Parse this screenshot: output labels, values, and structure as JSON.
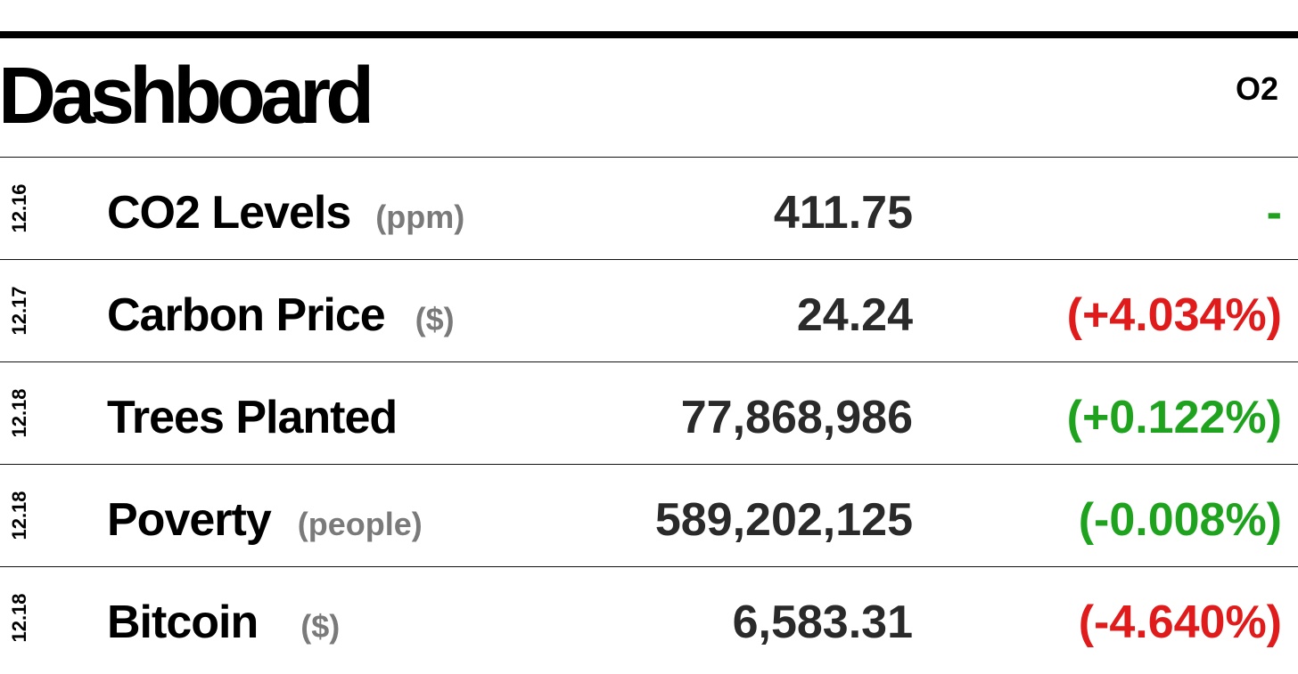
{
  "title": "Dashboard",
  "issue_number": "O2",
  "colors": {
    "positive": "#1fa31f",
    "negative": "#e01b1b",
    "unit_gray": "#7a7a7a"
  },
  "rows": [
    {
      "date": "12.16",
      "label": "CO2 Levels",
      "unit": "(ppm)",
      "value": "411.75",
      "change": "-",
      "change_color": "green"
    },
    {
      "date": "12.17",
      "label": "Carbon Price",
      "unit": "($)",
      "value": "24.24",
      "change": "(+4.034%)",
      "change_color": "red"
    },
    {
      "date": "12.18",
      "label": "Trees Planted",
      "unit": "",
      "value": "77,868,986",
      "change": "(+0.122%)",
      "change_color": "green"
    },
    {
      "date": "12.18",
      "label": "Poverty",
      "unit": "(people)",
      "value": "589,202,125",
      "change": "(-0.008%)",
      "change_color": "green"
    },
    {
      "date": "12.18",
      "label": "Bitcoin",
      "unit": "($)",
      "value": "6,583.31",
      "change": "(-4.640%)",
      "change_color": "red"
    }
  ]
}
